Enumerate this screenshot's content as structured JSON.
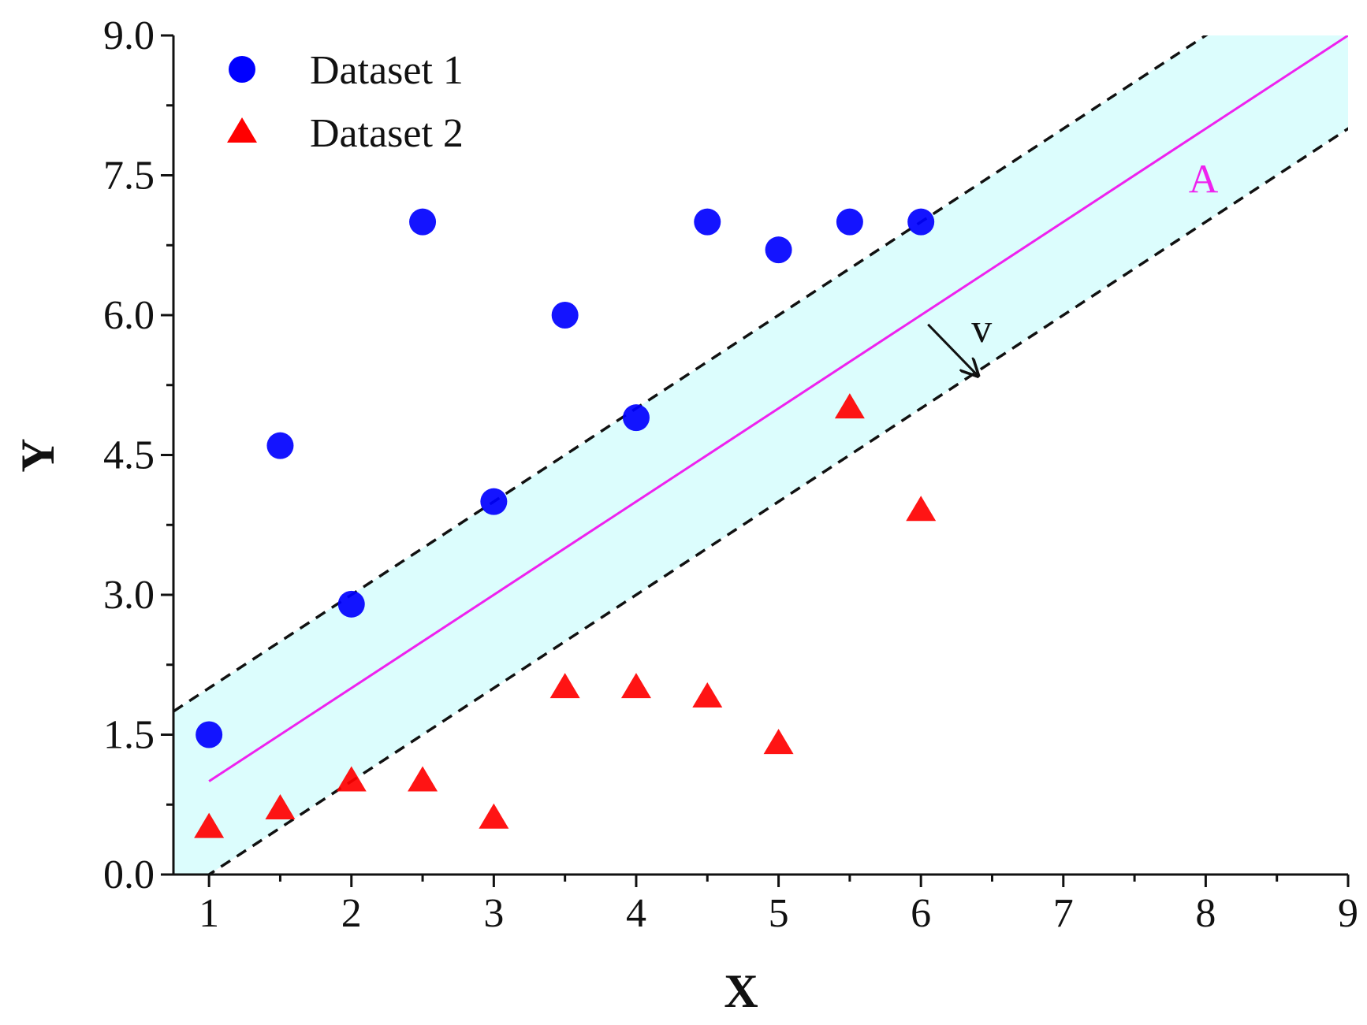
{
  "chart_data": {
    "type": "scatter",
    "xlabel": "X",
    "ylabel": "Y",
    "xlim": [
      0.75,
      9
    ],
    "ylim": [
      0,
      9
    ],
    "xticks": [
      1,
      2,
      3,
      4,
      5,
      6,
      7,
      8,
      9
    ],
    "yticks": [
      0,
      1.5,
      3,
      4.5,
      6,
      7.5,
      9
    ],
    "ytick_labels": [
      "0.0",
      "1.5",
      "3.0",
      "4.5",
      "6.0",
      "7.5",
      "9.0"
    ],
    "legend_position": "top-left",
    "series": [
      {
        "name": "Dataset 1",
        "marker": "circle",
        "color": "#0000ff",
        "x": [
          1,
          1.5,
          2,
          2.5,
          3,
          3.5,
          4,
          4.5,
          5,
          5.5,
          6
        ],
        "y": [
          1.5,
          4.6,
          2.9,
          7.0,
          4.0,
          6.0,
          4.9,
          7.0,
          6.7,
          7.0,
          7.0
        ]
      },
      {
        "name": "Dataset 2",
        "marker": "triangle",
        "color": "#ff0000",
        "x": [
          1,
          1.5,
          2,
          2.5,
          3,
          3.5,
          4,
          4.5,
          5,
          5.5,
          6
        ],
        "y": [
          0.5,
          0.7,
          1.0,
          1.0,
          0.6,
          2.0,
          2.0,
          1.9,
          1.4,
          5.0,
          3.9
        ]
      }
    ],
    "center_line": {
      "label": "A",
      "color": "#ee22ee",
      "slope": 1,
      "intercept": 0,
      "x_range": [
        1,
        9
      ]
    },
    "margin_lines": {
      "style": "dashed",
      "color": "#111111",
      "offsets": [
        1,
        -1
      ]
    },
    "band": {
      "color": "#dcfdfd"
    },
    "arrow": {
      "label": "v",
      "from": [
        6.05,
        5.9
      ],
      "to": [
        6.4,
        5.35
      ]
    }
  }
}
